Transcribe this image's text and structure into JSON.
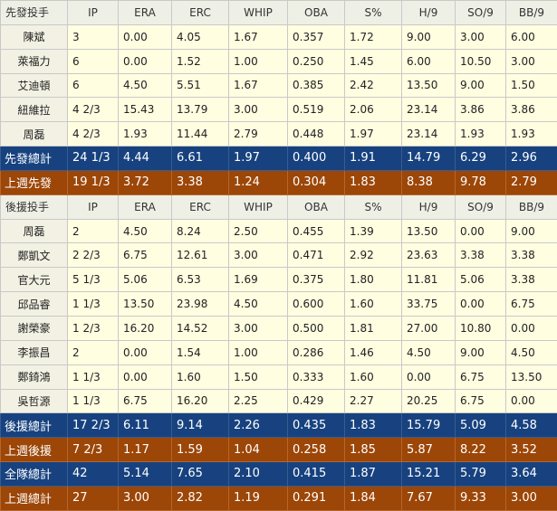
{
  "columns": [
    "IP",
    "ERA",
    "ERC",
    "WHIP",
    "OBA",
    "S%",
    "H/9",
    "SO/9",
    "BB/9"
  ],
  "starters": {
    "header": "先發投手",
    "rows": [
      {
        "name": "陳斌",
        "IP": "3",
        "ERA": "0.00",
        "ERC": "4.05",
        "WHIP": "1.67",
        "OBA": "0.357",
        "S%": "1.72",
        "H/9": "9.00",
        "SO/9": "3.00",
        "BB/9": "6.00"
      },
      {
        "name": "萊福力",
        "IP": "6",
        "ERA": "0.00",
        "ERC": "1.52",
        "WHIP": "1.00",
        "OBA": "0.250",
        "S%": "1.45",
        "H/9": "6.00",
        "SO/9": "10.50",
        "BB/9": "3.00"
      },
      {
        "name": "艾迪頓",
        "IP": "6",
        "ERA": "4.50",
        "ERC": "5.51",
        "WHIP": "1.67",
        "OBA": "0.385",
        "S%": "2.42",
        "H/9": "13.50",
        "SO/9": "9.00",
        "BB/9": "1.50"
      },
      {
        "name": "紐維拉",
        "IP": "4 2/3",
        "ERA": "15.43",
        "ERC": "13.79",
        "WHIP": "3.00",
        "OBA": "0.519",
        "S%": "2.06",
        "H/9": "23.14",
        "SO/9": "3.86",
        "BB/9": "3.86"
      },
      {
        "name": "周磊",
        "IP": "4 2/3",
        "ERA": "1.93",
        "ERC": "11.44",
        "WHIP": "2.79",
        "OBA": "0.448",
        "S%": "1.97",
        "H/9": "23.14",
        "SO/9": "1.93",
        "BB/9": "1.93"
      }
    ],
    "totals": [
      {
        "style": "blue",
        "name": "先發總計",
        "IP": "24 1/3",
        "ERA": "4.44",
        "ERC": "6.61",
        "WHIP": "1.97",
        "OBA": "0.400",
        "S%": "1.91",
        "H/9": "14.79",
        "SO/9": "6.29",
        "BB/9": "2.96"
      },
      {
        "style": "orange",
        "name": "上週先發",
        "IP": "19 1/3",
        "ERA": "3.72",
        "ERC": "3.38",
        "WHIP": "1.24",
        "OBA": "0.304",
        "S%": "1.83",
        "H/9": "8.38",
        "SO/9": "9.78",
        "BB/9": "2.79"
      }
    ]
  },
  "relievers": {
    "header": "後援投手",
    "rows": [
      {
        "name": "周磊",
        "IP": "2",
        "ERA": "4.50",
        "ERC": "8.24",
        "WHIP": "2.50",
        "OBA": "0.455",
        "S%": "1.39",
        "H/9": "13.50",
        "SO/9": "0.00",
        "BB/9": "9.00"
      },
      {
        "name": "鄭凱文",
        "IP": "2 2/3",
        "ERA": "6.75",
        "ERC": "12.61",
        "WHIP": "3.00",
        "OBA": "0.471",
        "S%": "2.92",
        "H/9": "23.63",
        "SO/9": "3.38",
        "BB/9": "3.38"
      },
      {
        "name": "官大元",
        "IP": "5 1/3",
        "ERA": "5.06",
        "ERC": "6.53",
        "WHIP": "1.69",
        "OBA": "0.375",
        "S%": "1.80",
        "H/9": "11.81",
        "SO/9": "5.06",
        "BB/9": "3.38"
      },
      {
        "name": "邱品睿",
        "IP": "1 1/3",
        "ERA": "13.50",
        "ERC": "23.98",
        "WHIP": "4.50",
        "OBA": "0.600",
        "S%": "1.60",
        "H/9": "33.75",
        "SO/9": "0.00",
        "BB/9": "6.75"
      },
      {
        "name": "謝榮豪",
        "IP": "1 2/3",
        "ERA": "16.20",
        "ERC": "14.52",
        "WHIP": "3.00",
        "OBA": "0.500",
        "S%": "1.81",
        "H/9": "27.00",
        "SO/9": "10.80",
        "BB/9": "0.00"
      },
      {
        "name": "李振昌",
        "IP": "2",
        "ERA": "0.00",
        "ERC": "1.54",
        "WHIP": "1.00",
        "OBA": "0.286",
        "S%": "1.46",
        "H/9": "4.50",
        "SO/9": "9.00",
        "BB/9": "4.50"
      },
      {
        "name": "鄭錡鴻",
        "IP": "1 1/3",
        "ERA": "0.00",
        "ERC": "1.60",
        "WHIP": "1.50",
        "OBA": "0.333",
        "S%": "1.60",
        "H/9": "0.00",
        "SO/9": "6.75",
        "BB/9": "13.50"
      },
      {
        "name": "吳哲源",
        "IP": "1 1/3",
        "ERA": "6.75",
        "ERC": "16.20",
        "WHIP": "2.25",
        "OBA": "0.429",
        "S%": "2.27",
        "H/9": "20.25",
        "SO/9": "6.75",
        "BB/9": "0.00"
      }
    ],
    "totals": [
      {
        "style": "blue",
        "name": "後援總計",
        "IP": "17 2/3",
        "ERA": "6.11",
        "ERC": "9.14",
        "WHIP": "2.26",
        "OBA": "0.435",
        "S%": "1.83",
        "H/9": "15.79",
        "SO/9": "5.09",
        "BB/9": "4.58"
      },
      {
        "style": "orange",
        "name": "上週後援",
        "IP": "7 2/3",
        "ERA": "1.17",
        "ERC": "1.59",
        "WHIP": "1.04",
        "OBA": "0.258",
        "S%": "1.85",
        "H/9": "5.87",
        "SO/9": "8.22",
        "BB/9": "3.52"
      },
      {
        "style": "blue",
        "name": "全隊總計",
        "IP": "42",
        "ERA": "5.14",
        "ERC": "7.65",
        "WHIP": "2.10",
        "OBA": "0.415",
        "S%": "1.87",
        "H/9": "15.21",
        "SO/9": "5.79",
        "BB/9": "3.64"
      },
      {
        "style": "orange",
        "name": "上週總計",
        "IP": "27",
        "ERA": "3.00",
        "ERC": "2.82",
        "WHIP": "1.19",
        "OBA": "0.291",
        "S%": "1.84",
        "H/9": "7.67",
        "SO/9": "9.33",
        "BB/9": "3.00"
      }
    ]
  }
}
